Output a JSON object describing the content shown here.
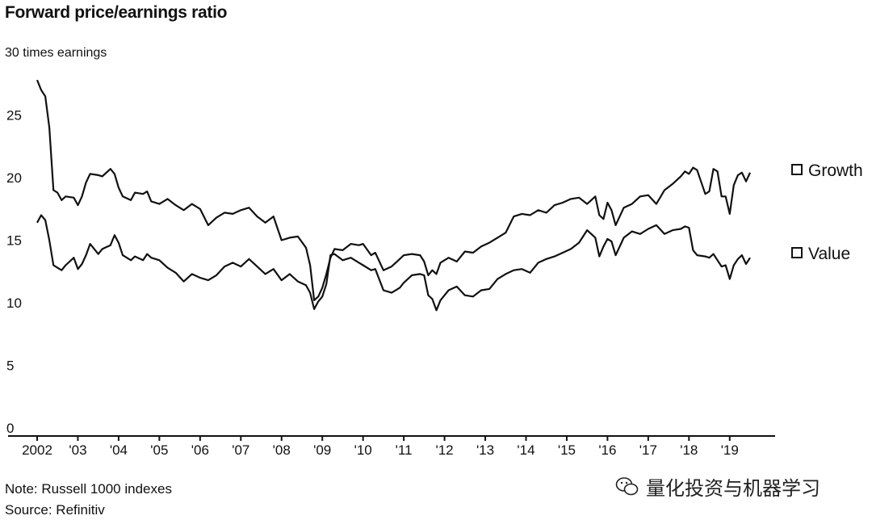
{
  "chart_data": {
    "type": "line",
    "title": "Forward price/earnings ratio",
    "unit_label": "30 times earnings",
    "ylim": [
      0,
      30
    ],
    "y_ticks": [
      "0",
      "5",
      "10",
      "15",
      "20",
      "25"
    ],
    "y_tick_values": [
      0,
      5,
      10,
      15,
      20,
      25
    ],
    "xlim": [
      2002.0,
      2019.6
    ],
    "x_ticks": [
      "2002",
      "'03",
      "'04",
      "'05",
      "'06",
      "'07",
      "'08",
      "'09",
      "'10",
      "'11",
      "'12",
      "'13",
      "'14",
      "'15",
      "'16",
      "'17",
      "'18",
      "'19"
    ],
    "x_tick_values": [
      2002,
      2003,
      2004,
      2005,
      2006,
      2007,
      2008,
      2009,
      2010,
      2011,
      2012,
      2013,
      2014,
      2015,
      2016,
      2017,
      2018,
      2019
    ],
    "grid": false,
    "legend_placement": "right, inline at line ends",
    "series": [
      {
        "name": "Growth",
        "x": [
          2002.0,
          2002.1,
          2002.2,
          2002.3,
          2002.4,
          2002.5,
          2002.6,
          2002.7,
          2002.9,
          2003.0,
          2003.1,
          2003.2,
          2003.3,
          2003.5,
          2003.6,
          2003.8,
          2003.9,
          2004.0,
          2004.1,
          2004.3,
          2004.4,
          2004.6,
          2004.7,
          2004.8,
          2005.0,
          2005.2,
          2005.4,
          2005.6,
          2005.8,
          2006.0,
          2006.2,
          2006.4,
          2006.6,
          2006.8,
          2007.0,
          2007.2,
          2007.4,
          2007.6,
          2007.8,
          2008.0,
          2008.2,
          2008.4,
          2008.6,
          2008.7,
          2008.8,
          2008.9,
          2009.0,
          2009.1,
          2009.2,
          2009.3,
          2009.5,
          2009.7,
          2009.9,
          2010.0,
          2010.2,
          2010.3,
          2010.5,
          2010.7,
          2010.9,
          2011.0,
          2011.2,
          2011.4,
          2011.5,
          2011.6,
          2011.7,
          2011.8,
          2011.9,
          2012.1,
          2012.3,
          2012.5,
          2012.7,
          2012.9,
          2013.1,
          2013.3,
          2013.5,
          2013.7,
          2013.9,
          2014.1,
          2014.3,
          2014.5,
          2014.7,
          2014.9,
          2015.1,
          2015.3,
          2015.5,
          2015.7,
          2015.8,
          2015.9,
          2016.0,
          2016.1,
          2016.2,
          2016.4,
          2016.6,
          2016.8,
          2017.0,
          2017.2,
          2017.4,
          2017.6,
          2017.8,
          2017.9,
          2018.0,
          2018.1,
          2018.2,
          2018.4,
          2018.5,
          2018.6,
          2018.7,
          2018.8,
          2018.9,
          2019.0,
          2019.1,
          2019.2,
          2019.3,
          2019.4,
          2019.5
        ],
        "values": [
          27.8,
          27.0,
          26.5,
          24.0,
          19.0,
          18.8,
          18.2,
          18.5,
          18.4,
          17.8,
          18.5,
          19.6,
          20.3,
          20.2,
          20.1,
          20.7,
          20.3,
          19.2,
          18.5,
          18.2,
          18.8,
          18.7,
          18.9,
          18.1,
          17.9,
          18.3,
          17.8,
          17.4,
          17.9,
          17.5,
          16.2,
          16.8,
          17.2,
          17.1,
          17.4,
          17.6,
          16.9,
          16.4,
          16.9,
          15.0,
          15.2,
          15.3,
          14.4,
          13.0,
          10.2,
          10.5,
          11.2,
          12.3,
          13.6,
          14.3,
          14.2,
          14.7,
          14.6,
          14.7,
          13.8,
          14.0,
          12.6,
          12.9,
          13.5,
          13.8,
          13.9,
          13.8,
          13.3,
          12.2,
          12.6,
          12.3,
          13.2,
          13.6,
          13.3,
          14.1,
          14.0,
          14.5,
          14.8,
          15.2,
          15.6,
          16.9,
          17.1,
          17.0,
          17.4,
          17.2,
          17.8,
          18.0,
          18.3,
          18.4,
          17.9,
          18.5,
          17.0,
          16.7,
          18.0,
          17.4,
          16.2,
          17.6,
          17.9,
          18.5,
          18.6,
          17.9,
          19.0,
          19.5,
          20.1,
          20.5,
          20.3,
          20.8,
          20.6,
          18.7,
          18.9,
          20.7,
          20.5,
          18.5,
          18.5,
          17.1,
          19.4,
          20.2,
          20.4,
          19.7,
          20.4
        ]
      },
      {
        "name": "Value",
        "x": [
          2002.0,
          2002.1,
          2002.2,
          2002.3,
          2002.4,
          2002.5,
          2002.6,
          2002.7,
          2002.9,
          2003.0,
          2003.1,
          2003.2,
          2003.3,
          2003.5,
          2003.6,
          2003.8,
          2003.9,
          2004.0,
          2004.1,
          2004.3,
          2004.4,
          2004.6,
          2004.7,
          2004.8,
          2005.0,
          2005.2,
          2005.4,
          2005.6,
          2005.8,
          2006.0,
          2006.2,
          2006.4,
          2006.6,
          2006.8,
          2007.0,
          2007.2,
          2007.4,
          2007.6,
          2007.8,
          2008.0,
          2008.2,
          2008.4,
          2008.6,
          2008.7,
          2008.8,
          2008.9,
          2009.0,
          2009.1,
          2009.2,
          2009.3,
          2009.5,
          2009.7,
          2009.9,
          2010.0,
          2010.2,
          2010.3,
          2010.5,
          2010.7,
          2010.9,
          2011.0,
          2011.2,
          2011.4,
          2011.5,
          2011.6,
          2011.7,
          2011.8,
          2011.9,
          2012.1,
          2012.3,
          2012.5,
          2012.7,
          2012.9,
          2013.1,
          2013.3,
          2013.5,
          2013.7,
          2013.9,
          2014.1,
          2014.3,
          2014.5,
          2014.7,
          2014.9,
          2015.1,
          2015.3,
          2015.5,
          2015.7,
          2015.8,
          2015.9,
          2016.0,
          2016.1,
          2016.2,
          2016.4,
          2016.6,
          2016.8,
          2017.0,
          2017.2,
          2017.4,
          2017.6,
          2017.8,
          2017.9,
          2018.0,
          2018.1,
          2018.2,
          2018.4,
          2018.5,
          2018.6,
          2018.7,
          2018.8,
          2018.9,
          2019.0,
          2019.1,
          2019.2,
          2019.3,
          2019.4,
          2019.5
        ],
        "values": [
          16.4,
          17.0,
          16.6,
          15.0,
          13.0,
          12.8,
          12.6,
          13.0,
          13.6,
          12.7,
          13.1,
          13.8,
          14.7,
          13.9,
          14.3,
          14.6,
          15.4,
          14.8,
          13.8,
          13.4,
          13.7,
          13.4,
          13.9,
          13.6,
          13.4,
          12.8,
          12.4,
          11.7,
          12.3,
          12.0,
          11.8,
          12.2,
          12.9,
          13.2,
          12.9,
          13.5,
          12.9,
          12.3,
          12.7,
          11.8,
          12.3,
          11.7,
          11.4,
          10.8,
          9.5,
          10.1,
          10.5,
          11.5,
          13.8,
          13.9,
          13.4,
          13.6,
          13.2,
          13.0,
          12.6,
          12.7,
          11.0,
          10.8,
          11.2,
          11.6,
          12.2,
          12.3,
          12.2,
          10.6,
          10.3,
          9.4,
          10.2,
          11.0,
          11.3,
          10.6,
          10.5,
          11.0,
          11.1,
          11.9,
          12.3,
          12.6,
          12.7,
          12.4,
          13.2,
          13.5,
          13.7,
          14.0,
          14.3,
          14.8,
          15.8,
          15.2,
          13.7,
          14.5,
          15.1,
          14.9,
          13.8,
          15.2,
          15.7,
          15.5,
          15.9,
          16.2,
          15.5,
          15.8,
          15.9,
          16.1,
          16.0,
          14.2,
          13.8,
          13.7,
          13.6,
          13.9,
          13.4,
          12.9,
          13.0,
          11.9,
          13.0,
          13.5,
          13.8,
          13.1,
          13.6
        ]
      }
    ]
  },
  "note": "Note: Russell 1000 indexes",
  "source": "Source: Refinitiv",
  "watermark": "量化投资与机器学习",
  "colors": {
    "line": "#111111",
    "axis": "#111111",
    "background": "#ffffff"
  },
  "icons": {
    "watermark": "wechat-icon"
  }
}
